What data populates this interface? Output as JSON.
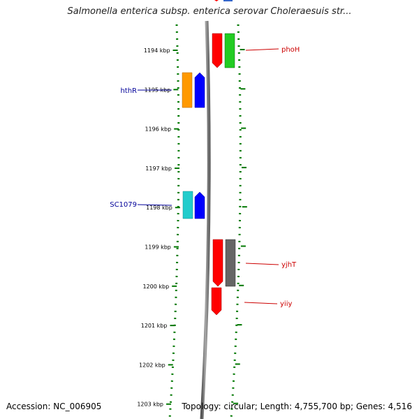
{
  "title": "Salmonella enterica subsp. enterica serovar Choleraesuis str...",
  "accession_label": "Accession: NC_006905",
  "topology_label": "Topology: circular; Length: 4,755,700 bp; Genes: 4,516",
  "ticks": [
    "1194 kbp",
    "1195 kbp",
    "1196 kbp",
    "1197 kbp",
    "1198 kbp",
    "1199 kbp",
    "1200 kbp",
    "1201 kbp",
    "1202 kbp",
    "1203 kbp"
  ],
  "genes": [
    {
      "name": "phoH",
      "strand": "-",
      "color": "#22cc22"
    },
    {
      "name": "hthR",
      "strand": "+",
      "color": "#ff9900"
    },
    {
      "name": "SC1079",
      "strand": "+",
      "color": "#22cccc"
    },
    {
      "name": "yjhT",
      "strand": "-",
      "color": "#666666"
    },
    {
      "name": "yiiy",
      "strand": "-",
      "color": "#ff0000"
    }
  ],
  "colors": {
    "backbone": "#888888",
    "tick_green": "#007700",
    "reverse_label": "#cc0000",
    "forward_label": "#000099",
    "cds_forward": "#0000ff",
    "cds_reverse": "#ff0000"
  }
}
